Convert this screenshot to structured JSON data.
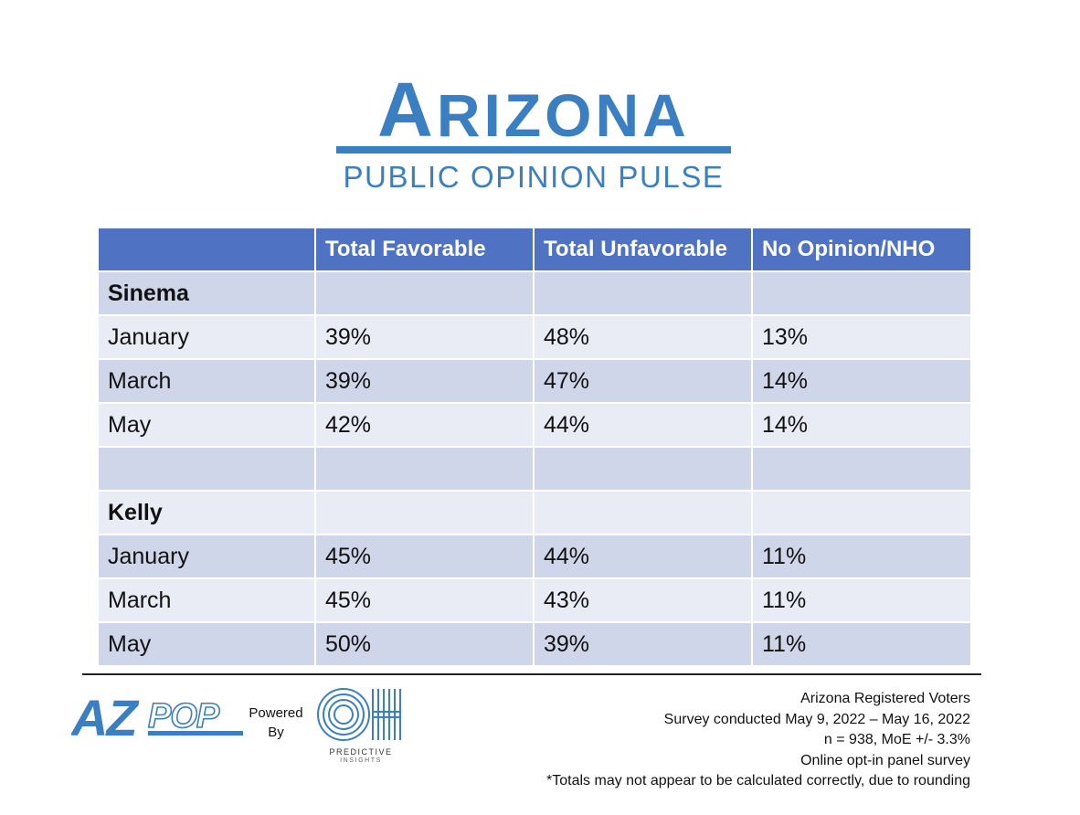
{
  "brand": {
    "title_first": "A",
    "title_rest": "RIZONA",
    "subtitle": "PUBLIC OPINION PULSE",
    "color": "#3a7fc1"
  },
  "table": {
    "headers": [
      "",
      "Total Favorable",
      "Total Unfavorable",
      "No Opinion/NHO"
    ],
    "rows": [
      [
        "Sinema",
        "",
        "",
        ""
      ],
      [
        "January",
        "39%",
        "48%",
        "13%"
      ],
      [
        "March",
        "39%",
        "47%",
        "14%"
      ],
      [
        "May",
        "42%",
        "44%",
        "14%"
      ],
      [
        "",
        "",
        "",
        ""
      ],
      [
        "Kelly",
        "",
        "",
        ""
      ],
      [
        "January",
        "45%",
        "44%",
        "11%"
      ],
      [
        "March",
        "45%",
        "43%",
        "11%"
      ],
      [
        "May",
        "50%",
        "39%",
        "11%"
      ]
    ],
    "header_color": "#4f72c2",
    "row_color_dark": "#cfd6e9",
    "row_color_light": "#e9ecf5"
  },
  "footer": {
    "azpop_logo": "AZPOP",
    "powered_line1": "Powered",
    "powered_line2": "By",
    "oh_logo": "OH",
    "oh_caption_line1": "PREDICTIVE",
    "oh_caption_line2": "INSIGHTS",
    "notes": [
      "Arizona Registered Voters",
      "Survey conducted May 9, 2022 – May 16, 2022",
      "n = 938, MoE +/- 3.3%",
      "Online opt-in panel survey",
      "*Totals may not appear to be calculated correctly, due to rounding"
    ]
  }
}
